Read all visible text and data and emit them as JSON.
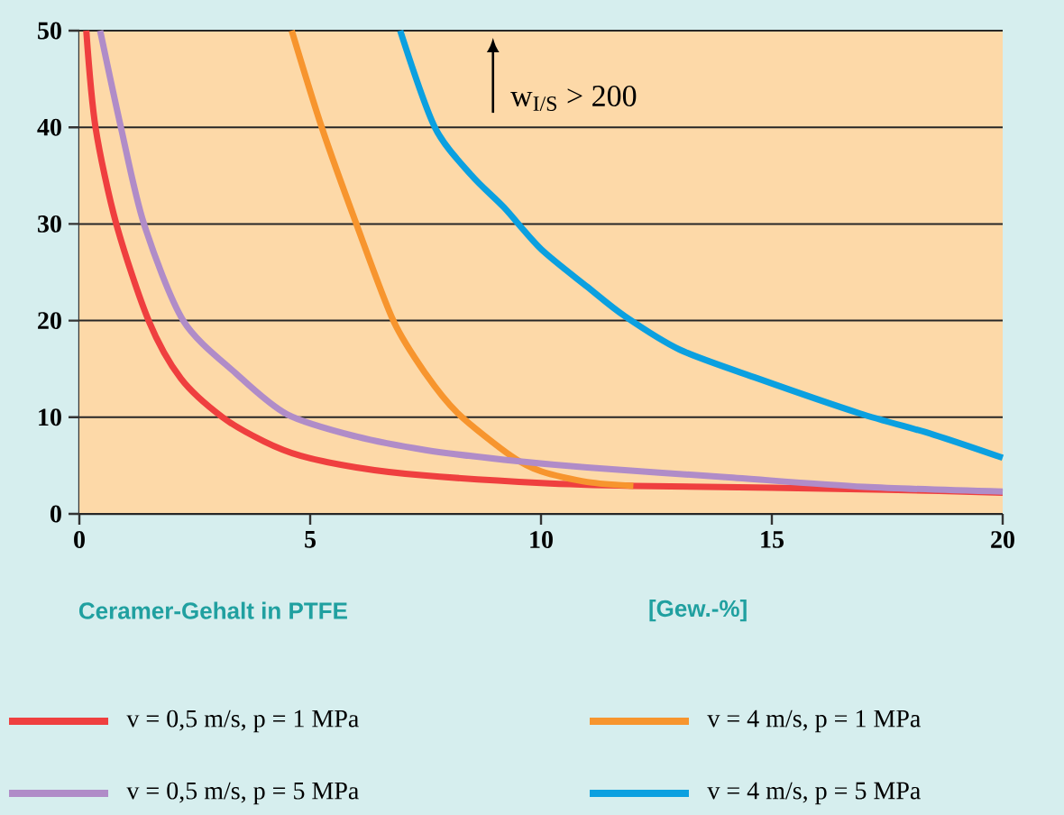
{
  "chart_data": {
    "type": "line",
    "xlabel": "Ceramer-Gehalt in PTFE",
    "annotations": [
      "[Gew.-%]",
      "w$_{I/S}$ > 200"
    ],
    "xlim": [
      0,
      20
    ],
    "xticks": [
      0,
      5,
      10,
      15,
      20
    ],
    "ylim": [
      0,
      50
    ],
    "yticks": [
      0,
      10,
      20,
      30,
      40,
      50
    ],
    "grid": "y",
    "legend": "bottom",
    "series": [
      {
        "name": "v = 0,5 m/s, p = 1 MPa",
        "color": "#ef3f3f",
        "x": [
          0.15,
          0.35,
          0.8,
          1.5,
          2.2,
          3.1,
          4,
          4.8,
          6,
          7.4,
          10,
          12,
          15,
          17.5,
          20
        ],
        "values": [
          50,
          40,
          30,
          20,
          14,
          10,
          7.5,
          6,
          4.8,
          4,
          3.2,
          2.9,
          2.7,
          2.5,
          2.2
        ]
      },
      {
        "name": "v = 4 m/s, p = 1 MPa",
        "color": "#f7952e",
        "x": [
          4.6,
          5.25,
          6,
          6.8,
          7.5,
          8.2,
          9.35,
          10,
          11,
          12
        ],
        "values": [
          50,
          40,
          30,
          20,
          14.5,
          10.4,
          6,
          4.4,
          3.3,
          2.9
        ]
      },
      {
        "name": "v = 0,5 m/s, p = 5 MPa",
        "color": "#b08cc8",
        "x": [
          0.45,
          0.9,
          1.4,
          2.25,
          3.4,
          4.5,
          6,
          7.5,
          9.2,
          11,
          14,
          17,
          20
        ],
        "values": [
          50,
          40,
          30,
          20,
          14.5,
          10.3,
          8,
          6.6,
          5.6,
          4.8,
          3.8,
          2.8,
          2.3
        ]
      },
      {
        "name": "v = 4 m/s, p = 5 MPa",
        "color": "#0ba0e0",
        "x": [
          6.95,
          7.7,
          8.5,
          9.2,
          10,
          11,
          11.8,
          13,
          14.7,
          16.9,
          18.5,
          20
        ],
        "values": [
          50,
          40,
          35,
          31.7,
          27.4,
          23.5,
          20.5,
          17,
          14,
          10.4,
          8.2,
          5.8
        ]
      }
    ]
  }
}
